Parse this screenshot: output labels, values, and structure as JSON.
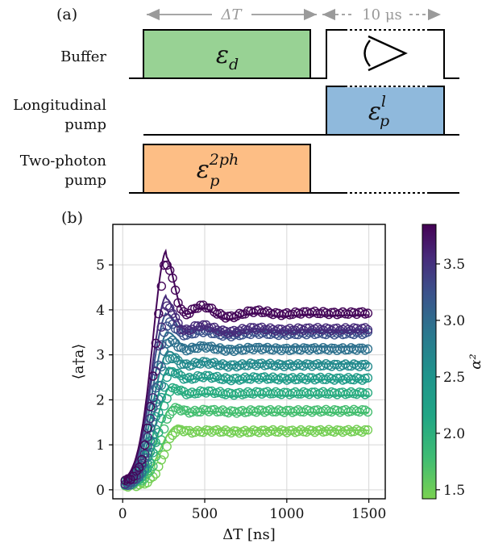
{
  "colors": {
    "buffer_fill": "#98d294",
    "longitudinal_fill": "#8fb9dc",
    "twophoton_fill": "#fdbe85",
    "arrow_grey": "#9a9a9a"
  },
  "panel_a": {
    "label": "(a)",
    "delta_t_label": "ΔT",
    "readout_label": "10 μs",
    "channels": [
      {
        "name_lines": [
          "Buffer"
        ],
        "pulse_label_base": "ε",
        "pulse_label_sub": "d",
        "pulse_label_sup": ""
      },
      {
        "name_lines": [
          "Longitudinal",
          "pump"
        ],
        "pulse_label_base": "ε",
        "pulse_label_sub": "p",
        "pulse_label_sup": "l"
      },
      {
        "name_lines": [
          "Two-photon",
          "pump"
        ],
        "pulse_label_base": "ε",
        "pulse_label_sub": "p",
        "pulse_label_sup": "2ph"
      }
    ],
    "eye_icon": "eye-icon"
  },
  "chart_data": {
    "type": "scatter",
    "panel_label": "(b)",
    "xlabel": "ΔT [ns]",
    "ylabel": "⟨a†a⟩",
    "xlim": [
      -60,
      1600
    ],
    "ylim": [
      -0.2,
      5.9
    ],
    "xticks": [
      0,
      500,
      1000,
      1500
    ],
    "yticks": [
      0,
      1,
      2,
      3,
      4,
      5
    ],
    "grid": true,
    "colorbar": {
      "label": "α²",
      "range": [
        1.42,
        3.85
      ],
      "ticks": [
        1.5,
        2.0,
        2.5,
        3.0,
        3.5
      ],
      "colormap": "viridis"
    },
    "series": [
      {
        "alpha2": 1.45,
        "plateau": 1.32,
        "peak": 1.5,
        "peak_t": 320
      },
      {
        "alpha2": 1.75,
        "plateau": 1.72,
        "peak": 1.98,
        "peak_t": 300
      },
      {
        "alpha2": 2.05,
        "plateau": 2.1,
        "peak": 2.45,
        "peak_t": 290
      },
      {
        "alpha2": 2.35,
        "plateau": 2.45,
        "peak": 2.9,
        "peak_t": 280
      },
      {
        "alpha2": 2.65,
        "plateau": 2.8,
        "peak": 3.3,
        "peak_t": 275
      },
      {
        "alpha2": 2.95,
        "plateau": 3.18,
        "peak": 3.75,
        "peak_t": 270
      },
      {
        "alpha2": 3.25,
        "plateau": 3.5,
        "peak": 4.2,
        "peak_t": 265
      },
      {
        "alpha2": 3.55,
        "plateau": 3.55,
        "peak": 4.6,
        "peak_t": 262
      },
      {
        "alpha2": 3.82,
        "plateau": 3.88,
        "peak": 5.65,
        "peak_t": 262
      }
    ]
  }
}
